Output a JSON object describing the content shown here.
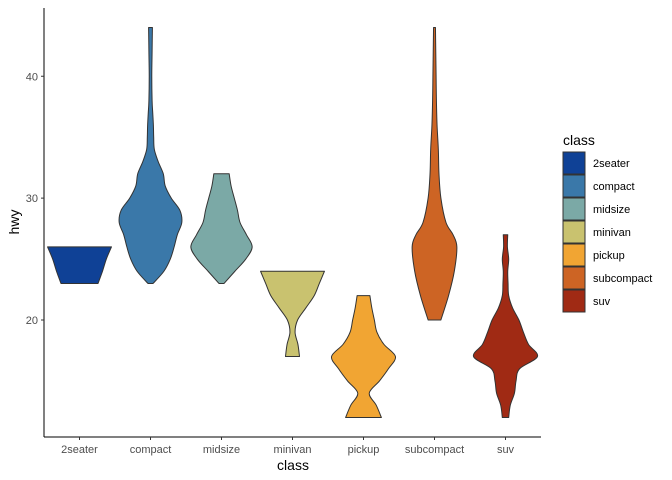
{
  "chart_data": {
    "type": "violin",
    "xlabel": "class",
    "ylabel": "hwy",
    "ylim": [
      10.4,
      45.6
    ],
    "yticks": [
      20,
      30,
      40
    ],
    "legend": {
      "title": "class",
      "position": "right"
    },
    "categories": [
      "2seater",
      "compact",
      "midsize",
      "minivan",
      "pickup",
      "subcompact",
      "suv"
    ],
    "colors": [
      "#0f4196",
      "#3a78a9",
      "#7ba9a6",
      "#c9c26f",
      "#f1a533",
      "#cd6424",
      "#a02a14"
    ],
    "series": [
      {
        "name": "2seater",
        "min": 23,
        "max": 26,
        "profile": [
          [
            23,
            0.58
          ],
          [
            24,
            0.72
          ],
          [
            25,
            0.84
          ],
          [
            26,
            1.0
          ]
        ]
      },
      {
        "name": "compact",
        "min": 23,
        "max": 44,
        "profile": [
          [
            23,
            0.08
          ],
          [
            24,
            0.42
          ],
          [
            25,
            0.62
          ],
          [
            26,
            0.74
          ],
          [
            27,
            0.84
          ],
          [
            28,
            0.98
          ],
          [
            29,
            0.92
          ],
          [
            30,
            0.65
          ],
          [
            31,
            0.46
          ],
          [
            32,
            0.4
          ],
          [
            33,
            0.24
          ],
          [
            34,
            0.12
          ],
          [
            35,
            0.1
          ],
          [
            36,
            0.09
          ],
          [
            37,
            0.07
          ],
          [
            38,
            0.05
          ],
          [
            40,
            0.04
          ],
          [
            42,
            0.05
          ],
          [
            44,
            0.06
          ]
        ]
      },
      {
        "name": "midsize",
        "min": 23,
        "max": 32,
        "profile": [
          [
            23,
            0.08
          ],
          [
            24,
            0.42
          ],
          [
            25,
            0.76
          ],
          [
            26,
            0.96
          ],
          [
            27,
            0.78
          ],
          [
            28,
            0.58
          ],
          [
            29,
            0.5
          ],
          [
            30,
            0.4
          ],
          [
            31,
            0.3
          ],
          [
            32,
            0.24
          ]
        ]
      },
      {
        "name": "minivan",
        "min": 17,
        "max": 24,
        "profile": [
          [
            17,
            0.22
          ],
          [
            18,
            0.17
          ],
          [
            19,
            0.08
          ],
          [
            20,
            0.16
          ],
          [
            21,
            0.42
          ],
          [
            22,
            0.68
          ],
          [
            23,
            0.84
          ],
          [
            24,
            1.0
          ]
        ]
      },
      {
        "name": "pickup",
        "min": 12,
        "max": 22,
        "profile": [
          [
            12,
            0.56
          ],
          [
            13,
            0.4
          ],
          [
            14,
            0.18
          ],
          [
            15,
            0.5
          ],
          [
            16,
            0.78
          ],
          [
            17,
            1.0
          ],
          [
            18,
            0.64
          ],
          [
            19,
            0.42
          ],
          [
            20,
            0.34
          ],
          [
            21,
            0.26
          ],
          [
            22,
            0.2
          ]
        ]
      },
      {
        "name": "subcompact",
        "min": 20,
        "max": 44,
        "profile": [
          [
            20,
            0.2
          ],
          [
            22,
            0.44
          ],
          [
            24,
            0.62
          ],
          [
            26,
            0.7
          ],
          [
            27,
            0.58
          ],
          [
            28,
            0.36
          ],
          [
            30,
            0.2
          ],
          [
            32,
            0.14
          ],
          [
            34,
            0.12
          ],
          [
            36,
            0.08
          ],
          [
            38,
            0.06
          ],
          [
            40,
            0.05
          ],
          [
            42,
            0.04
          ],
          [
            44,
            0.03
          ]
        ]
      },
      {
        "name": "suv",
        "min": 12,
        "max": 27,
        "profile": [
          [
            12,
            0.1
          ],
          [
            13,
            0.15
          ],
          [
            14,
            0.28
          ],
          [
            15,
            0.33
          ],
          [
            16,
            0.44
          ],
          [
            17,
            1.0
          ],
          [
            18,
            0.72
          ],
          [
            19,
            0.56
          ],
          [
            20,
            0.42
          ],
          [
            21,
            0.22
          ],
          [
            22,
            0.1
          ],
          [
            23,
            0.08
          ],
          [
            24,
            0.07
          ],
          [
            25,
            0.1
          ],
          [
            26,
            0.06
          ],
          [
            27,
            0.07
          ]
        ]
      }
    ]
  }
}
